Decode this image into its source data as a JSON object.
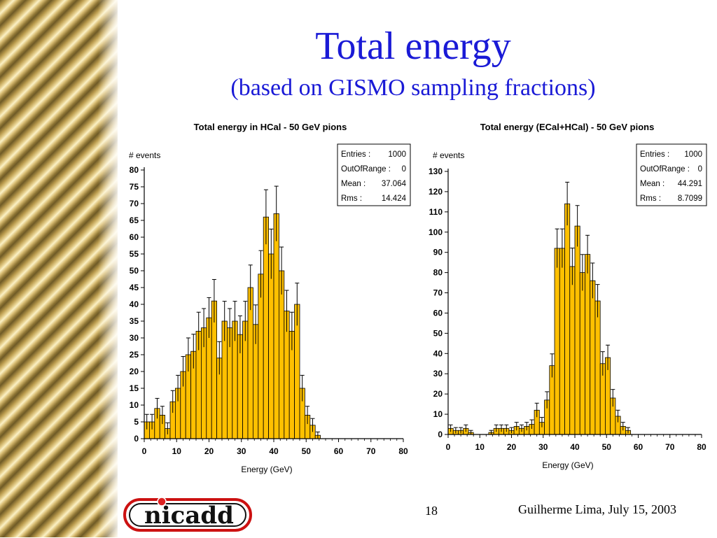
{
  "slide": {
    "title": "Total energy",
    "subtitle": "(based on GISMO sampling fractions)",
    "page_number": "18",
    "footer": "Guilherme Lima, July 15, 2003",
    "logo_text": "nicadd"
  },
  "colors": {
    "title": "#1a1ad6",
    "bar_fill": "#ffc000",
    "bar_stroke": "#000000"
  },
  "chart_data": [
    {
      "type": "bar",
      "title": "Total energy in HCal - 50 GeV pions",
      "xlabel": "Energy (GeV)",
      "ylabel": "# events",
      "xlim": [
        0,
        80
      ],
      "ylim": [
        0,
        80
      ],
      "xticks": [
        0,
        10,
        20,
        30,
        40,
        50,
        60,
        70,
        80
      ],
      "yticks": [
        0,
        5,
        10,
        15,
        20,
        25,
        30,
        35,
        40,
        45,
        50,
        55,
        60,
        65,
        70,
        75,
        80
      ],
      "bin_width": 1.6,
      "values": [
        5,
        5,
        9,
        7,
        3,
        11,
        15,
        20,
        25,
        26,
        32,
        33,
        36,
        41,
        24,
        35,
        33,
        35,
        31,
        35,
        45,
        34,
        49,
        66,
        55,
        67,
        50,
        38,
        32,
        40,
        15,
        7,
        4,
        1
      ],
      "show_errors": true,
      "stats": [
        {
          "label": "Entries :",
          "value": "1000"
        },
        {
          "label": "OutOfRange :",
          "value": "0"
        },
        {
          "label": "Mean :",
          "value": "37.064"
        },
        {
          "label": "Rms :",
          "value": "14.424"
        }
      ]
    },
    {
      "type": "bar",
      "title": "Total energy (ECal+HCal) - 50 GeV pions",
      "xlabel": "Energy (GeV)",
      "ylabel": "# events",
      "xlim": [
        0,
        80
      ],
      "ylim": [
        0,
        130
      ],
      "xticks": [
        0,
        10,
        20,
        30,
        40,
        50,
        60,
        70,
        80
      ],
      "yticks": [
        0,
        10,
        20,
        30,
        40,
        50,
        60,
        70,
        80,
        90,
        100,
        110,
        120,
        130
      ],
      "bin_width": 1.6,
      "values": [
        3,
        2,
        2,
        3,
        1,
        0,
        0,
        0,
        1,
        3,
        3,
        3,
        2,
        4,
        3,
        4,
        5,
        12,
        6,
        17,
        34,
        92,
        92,
        114,
        83,
        103,
        80,
        89,
        76,
        66,
        35,
        38,
        18,
        9,
        4,
        2
      ],
      "show_errors": true,
      "stats": [
        {
          "label": "Entries :",
          "value": "1000"
        },
        {
          "label": "OutOfRange :",
          "value": "0"
        },
        {
          "label": "Mean :",
          "value": "44.291"
        },
        {
          "label": "Rms :",
          "value": "8.7099"
        }
      ]
    }
  ]
}
